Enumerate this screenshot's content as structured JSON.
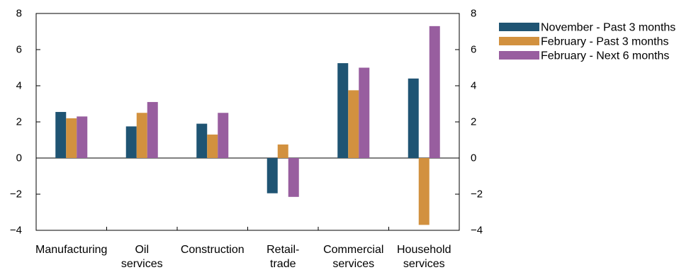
{
  "chart_data": {
    "type": "bar",
    "categories": [
      [
        "Manufacturing"
      ],
      [
        "Oil",
        "services"
      ],
      [
        "Construction"
      ],
      [
        "Retail-",
        "trade"
      ],
      [
        "Commercial",
        "services"
      ],
      [
        "Household",
        "services"
      ]
    ],
    "series": [
      {
        "name": "November - Past 3 months",
        "color": "#1f5473",
        "values": [
          2.55,
          1.75,
          1.9,
          -1.95,
          5.25,
          4.4
        ]
      },
      {
        "name": "February - Past 3 months",
        "color": "#d2913f",
        "values": [
          2.2,
          2.5,
          1.3,
          0.75,
          3.75,
          -3.7
        ]
      },
      {
        "name": "February - Next 6 months",
        "color": "#985e9f",
        "values": [
          2.3,
          3.1,
          2.5,
          -2.15,
          5.0,
          7.3
        ]
      }
    ],
    "ylim": [
      -4,
      8
    ],
    "yticks": [
      "8",
      "6",
      "4",
      "2",
      "0",
      "−2",
      "−4"
    ],
    "ytick_values": [
      8,
      6,
      4,
      2,
      0,
      -2,
      -4
    ],
    "right_axis": true,
    "legend_position": "top-right",
    "grid": false
  }
}
